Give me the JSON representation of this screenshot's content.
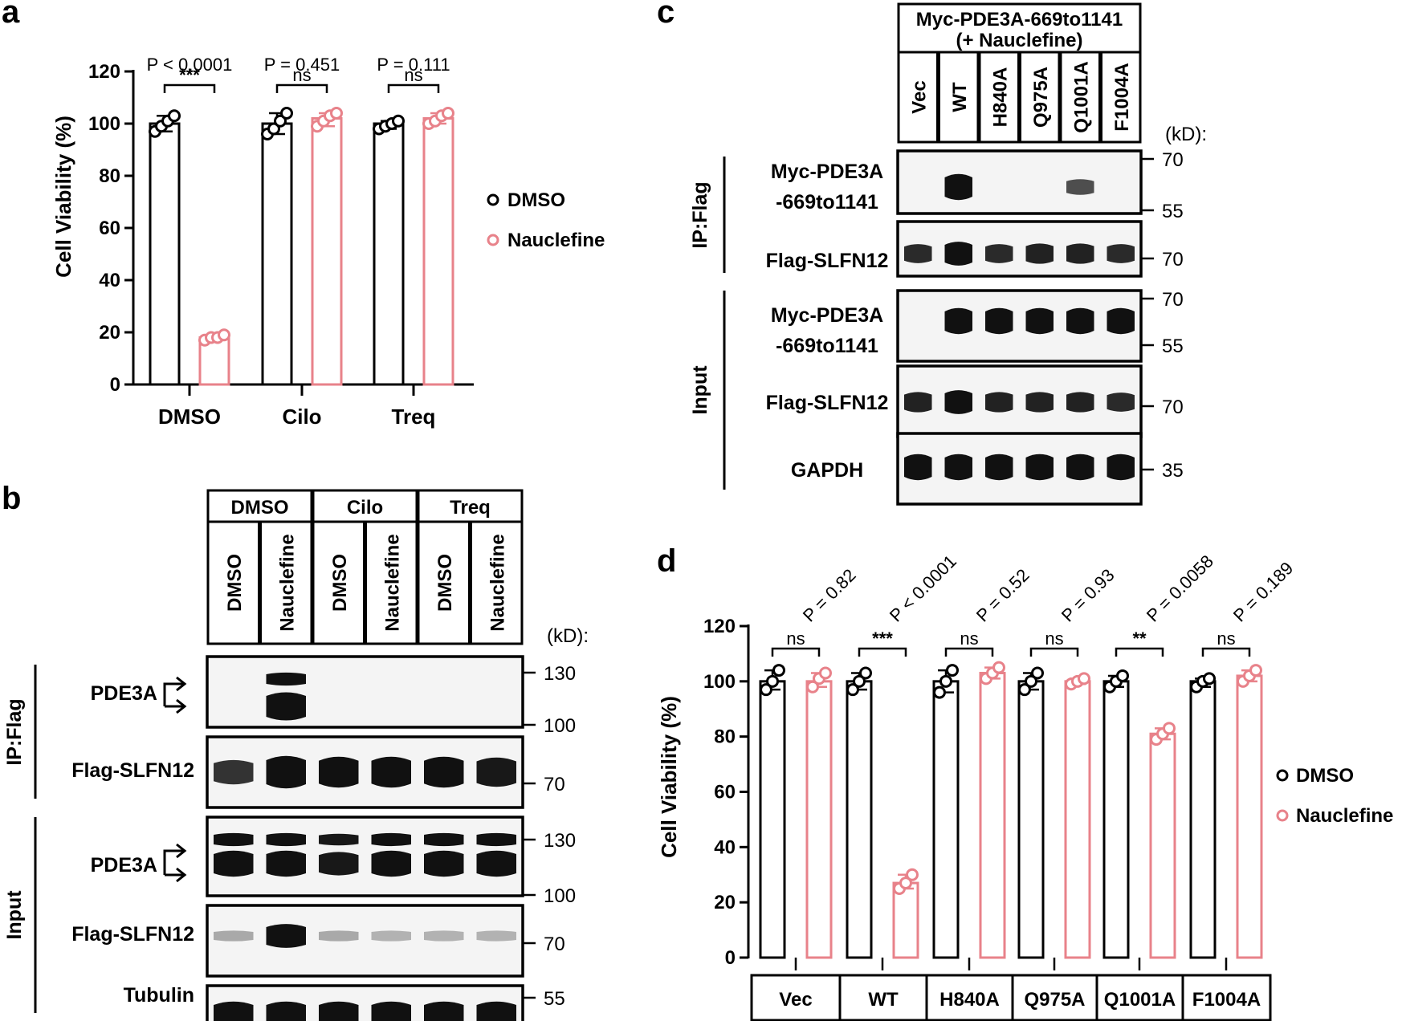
{
  "panels": {
    "a": "a",
    "b": "b",
    "c": "c",
    "d": "d"
  },
  "colors": {
    "dmso": "#000000",
    "nauclefine": "#e8828a",
    "band": "#111111"
  },
  "chart_data": [
    {
      "id": "a",
      "type": "bar",
      "title": "",
      "ylabel": "Cell Viability (%)",
      "ylim": [
        0,
        120
      ],
      "yticks": [
        0,
        20,
        40,
        60,
        80,
        100,
        120
      ],
      "categories": [
        "DMSO",
        "Cilo",
        "Treq"
      ],
      "series": [
        {
          "name": "DMSO",
          "values": [
            100,
            100,
            100
          ],
          "points": [
            [
              97,
              99,
              101,
              103
            ],
            [
              96,
              98,
              101,
              104
            ],
            [
              98,
              99,
              100,
              101
            ]
          ]
        },
        {
          "name": "Nauclefine",
          "values": [
            18,
            102,
            102
          ],
          "points": [
            [
              17,
              18,
              18,
              19
            ],
            [
              99,
              101,
              103,
              104
            ],
            [
              100,
              101,
              103,
              104
            ]
          ]
        }
      ],
      "pvalues": [
        "P < 0.0001",
        "P = 0.451",
        "P = 0.111"
      ],
      "significance": [
        "***",
        "ns",
        "ns"
      ],
      "legend": [
        "DMSO",
        "Nauclefine"
      ],
      "legend_position": "right"
    },
    {
      "id": "d",
      "type": "bar",
      "title": "",
      "ylabel": "Cell Viability (%)",
      "ylim": [
        0,
        120
      ],
      "yticks": [
        0,
        20,
        40,
        60,
        80,
        100,
        120
      ],
      "categories": [
        "Vec",
        "WT",
        "H840A",
        "Q975A",
        "Q1001A",
        "F1004A"
      ],
      "series": [
        {
          "name": "DMSO",
          "values": [
            100,
            100,
            100,
            100,
            100,
            100
          ],
          "points": [
            [
              97,
              100,
              104
            ],
            [
              97,
              100,
              103
            ],
            [
              96,
              100,
              104
            ],
            [
              97,
              100,
              103
            ],
            [
              98,
              100,
              102
            ],
            [
              98,
              100,
              101
            ]
          ]
        },
        {
          "name": "Nauclefine",
          "values": [
            100,
            27,
            103,
            100,
            81,
            102
          ],
          "points": [
            [
              98,
              101,
              103
            ],
            [
              25,
              27,
              30
            ],
            [
              101,
              103,
              105
            ],
            [
              99,
              100,
              101
            ],
            [
              79,
              81,
              83
            ],
            [
              100,
              102,
              104
            ]
          ]
        }
      ],
      "pvalues": [
        "P = 0.82",
        "P < 0.0001",
        "P = 0.52",
        "P = 0.93",
        "P = 0.0058",
        "P = 0.189"
      ],
      "significance": [
        "ns",
        "***",
        "ns",
        "ns",
        "**",
        "ns"
      ],
      "legend": [
        "DMSO",
        "Nauclefine"
      ],
      "legend_position": "right"
    }
  ],
  "blot_b": {
    "groups": [
      "DMSO",
      "Cilo",
      "Treq"
    ],
    "lanes": [
      "DMSO",
      "Nauclefine",
      "DMSO",
      "Nauclefine",
      "DMSO",
      "Nauclefine"
    ],
    "kd_label": "(kD):",
    "sections": [
      "IP:Flag",
      "Input"
    ],
    "rows": [
      {
        "label": "PDE3A",
        "markers": [
          "130",
          "100"
        ],
        "bands": [
          0,
          1,
          0,
          0,
          0,
          0
        ]
      },
      {
        "label": "Flag-SLFN12",
        "markers": [
          "70"
        ],
        "bands": [
          0.75,
          1,
          0.95,
          0.95,
          0.95,
          0.9
        ]
      },
      {
        "label": "PDE3A",
        "markers": [
          "130",
          "100"
        ],
        "bands": [
          1,
          1,
          0.9,
          1,
          1,
          1
        ]
      },
      {
        "label": "Flag-SLFN12",
        "markers": [
          "70"
        ],
        "bands": [
          0.1,
          1,
          0.1,
          0.05,
          0.05,
          0.05
        ]
      },
      {
        "label": "Tubulin",
        "markers": [
          "55"
        ],
        "bands": [
          1,
          1,
          1,
          1,
          1,
          1
        ]
      }
    ]
  },
  "blot_c": {
    "header_line1": "Myc-PDE3A-669to1141",
    "header_line2": "(+ Nauclefine)",
    "lanes": [
      "Vec",
      "WT",
      "H840A",
      "Q975A",
      "Q1001A",
      "F1004A"
    ],
    "kd_label": "(kD):",
    "sections": [
      "IP:Flag",
      "Input"
    ],
    "rows": [
      {
        "label1": "Myc-PDE3A",
        "label2": "-669to1141",
        "markers": [
          "70",
          "55"
        ],
        "bands": [
          0,
          1,
          0,
          0,
          0.6,
          0
        ]
      },
      {
        "label1": "Flag-SLFN12",
        "label2": "",
        "markers": [
          "70"
        ],
        "bands": [
          0.8,
          1,
          0.8,
          0.85,
          0.85,
          0.8
        ]
      },
      {
        "label1": "Myc-PDE3A",
        "label2": "-669to1141",
        "markers": [
          "70",
          "55"
        ],
        "bands": [
          0,
          1,
          1,
          1,
          1,
          1
        ]
      },
      {
        "label1": "Flag-SLFN12",
        "label2": "",
        "markers": [
          "70"
        ],
        "bands": [
          0.85,
          1,
          0.85,
          0.85,
          0.85,
          0.8
        ]
      },
      {
        "label1": "GAPDH",
        "label2": "",
        "markers": [
          "35"
        ],
        "bands": [
          1,
          1,
          1,
          1,
          1,
          1
        ]
      }
    ]
  }
}
